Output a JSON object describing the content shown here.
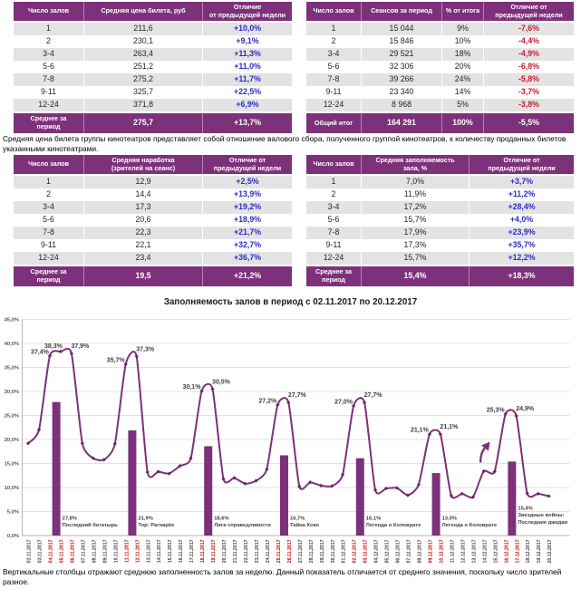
{
  "colors": {
    "purple": "#7D317A",
    "row_gray": "#E4E3E3",
    "positive_blue": "#2D2DBE",
    "negative_red": "#C31E32",
    "gridline": "#D9D9D9",
    "axis_line": "#A6A6A6",
    "data_label": "#3F3F3F",
    "date_label": "#404040",
    "date_label_weekend": "#C00000",
    "ytick_label": "#595959"
  },
  "tables": [
    {
      "name": "avg-ticket-price",
      "headers": [
        "Число залов",
        "Средняя цена билета, руб",
        "Отличие\nот предыдущей недели"
      ],
      "rows": [
        [
          "1",
          "211,6",
          "+10,0%"
        ],
        [
          "2",
          "230,1",
          "+9,1%"
        ],
        [
          "3-4",
          "263,4",
          "+11,3%"
        ],
        [
          "5-6",
          "251,2",
          "+11,0%"
        ],
        [
          "7-8",
          "275,2",
          "+11,7%"
        ],
        [
          "9-11",
          "325,7",
          "+22,5%"
        ],
        [
          "12-24",
          "371,8",
          "+6,9%"
        ]
      ],
      "footer": [
        "Среднее за\nпериод",
        "275,7",
        "+13,7%"
      ]
    },
    {
      "name": "sessions-per-period",
      "headers": [
        "Число залов",
        "Сеансов за период",
        "% от итога",
        "Отличие от\nпредыдущей недели"
      ],
      "rows": [
        [
          "1",
          "15 044",
          "9%",
          "-7,6%"
        ],
        [
          "2",
          "15 846",
          "10%",
          "-4,4%"
        ],
        [
          "3-4",
          "29 521",
          "18%",
          "-4,9%"
        ],
        [
          "5-6",
          "32 306",
          "20%",
          "-6,8%"
        ],
        [
          "7-8",
          "39 266",
          "24%",
          "-5,8%"
        ],
        [
          "9-11",
          "23 340",
          "14%",
          "-3,7%"
        ],
        [
          "12-24",
          "8 968",
          "5%",
          "-3,8%"
        ]
      ],
      "footer": [
        "Общий итог",
        "164 291",
        "100%",
        "-5,5%"
      ]
    },
    {
      "name": "avg-attendance-per-session",
      "headers": [
        "Число залов",
        "Средняя наработка\n(зрителей на сеанс)",
        "Отличие от\nпредыдущей недели"
      ],
      "rows": [
        [
          "1",
          "12,9",
          "+2,5%"
        ],
        [
          "2",
          "14,4",
          "+13,9%"
        ],
        [
          "3-4",
          "17,3",
          "+19,2%"
        ],
        [
          "5-6",
          "20,6",
          "+18,9%"
        ],
        [
          "7-8",
          "22,3",
          "+21,7%"
        ],
        [
          "9-11",
          "22,1",
          "+32,7%"
        ],
        [
          "12-24",
          "23,4",
          "+36,7%"
        ]
      ],
      "footer": [
        "Среднее за\nпериод",
        "19,5",
        "+21,2%"
      ]
    },
    {
      "name": "avg-hall-occupancy",
      "headers": [
        "Число залов",
        "Средняя заполняемость\nзала, %",
        "Отличие от\nпредыдущей недели"
      ],
      "rows": [
        [
          "1",
          "7,0%",
          "+3,7%"
        ],
        [
          "2",
          "11,9%",
          "+11,2%"
        ],
        [
          "3-4",
          "17,2%",
          "+28,4%"
        ],
        [
          "5-6",
          "15,7%",
          "+4,0%"
        ],
        [
          "7-8",
          "17,9%",
          "+23,9%"
        ],
        [
          "9-11",
          "17,3%",
          "+35,7%"
        ],
        [
          "12-24",
          "15,7%",
          "+12,2%"
        ]
      ],
      "footer": [
        "Среднее за\nпериод",
        "15,4%",
        "+18,3%"
      ]
    }
  ],
  "notes": {
    "ticket_price_note": "Средняя цена билета группы кинотеатров представляет собой отношение валового сбора, полученного группой кинотеатров, к количеству проданных билетов указанными кинотеатрами.",
    "bars_note": "Вертикальные столбцы отражают среднюю заполненность залов за неделю. Данный показатель отличается от среднего значения, поскольку число зрителей разное."
  },
  "chart_data": {
    "type": "line",
    "title": "Заполняемость залов в период с 02.11.2017 по 20.12.2017",
    "ylabel": "",
    "xlabel": "",
    "ylim": [
      0,
      45
    ],
    "ygrid_step": 5,
    "grid": true,
    "legend": false,
    "dates": [
      "02.11.2017",
      "03.11.2017",
      "04.11.2017",
      "05.11.2017",
      "06.11.2017",
      "07.11.2017",
      "08.11.2017",
      "09.11.2017",
      "10.11.2017",
      "11.11.2017",
      "12.11.2017",
      "13.11.2017",
      "14.11.2017",
      "15.11.2017",
      "16.11.2017",
      "17.11.2017",
      "18.11.2017",
      "19.11.2017",
      "20.11.2017",
      "21.11.2017",
      "22.11.2017",
      "23.11.2017",
      "24.11.2017",
      "25.11.2017",
      "26.11.2017",
      "27.11.2017",
      "28.11.2017",
      "29.11.2017",
      "30.11.2017",
      "01.12.2017",
      "02.12.2017",
      "03.12.2017",
      "04.12.2017",
      "05.12.2017",
      "06.12.2017",
      "07.12.2017",
      "08.12.2017",
      "09.12.2017",
      "10.12.2017",
      "11.12.2017",
      "12.12.2017",
      "13.12.2017",
      "14.12.2017",
      "15.12.2017",
      "16.12.2017",
      "17.12.2017",
      "18.12.2017",
      "19.12.2017",
      "20.12.2017"
    ],
    "weekend_red_dates": [
      "04.11.2017",
      "05.11.2017",
      "06.11.2017",
      "11.11.2017",
      "12.11.2017",
      "18.11.2017",
      "19.11.2017",
      "25.11.2017",
      "26.11.2017",
      "02.12.2017",
      "03.12.2017",
      "09.12.2017",
      "10.12.2017",
      "16.12.2017",
      "17.12.2017"
    ],
    "series": [
      {
        "name": "daily-occupancy-line",
        "type": "line",
        "smooth": true,
        "values": [
          19.2,
          22.0,
          37.4,
          38.3,
          37.9,
          19.2,
          16.1,
          15.8,
          19.1,
          35.7,
          37.3,
          13.2,
          13.3,
          12.9,
          14.5,
          16.1,
          30.1,
          30.5,
          11.8,
          12.0,
          10.8,
          11.4,
          13.8,
          27.2,
          27.7,
          10.2,
          11.1,
          10.4,
          10.3,
          12.7,
          27.0,
          27.7,
          9.5,
          9.8,
          9.9,
          8.4,
          10.6,
          21.1,
          21.1,
          8.3,
          8.7,
          8.0,
          13.4,
          13.3,
          25.3,
          24.9,
          8.8,
          8.7,
          8.2
        ],
        "point_labels": {
          "04.11.2017": "37,4%",
          "05.11.2017": "38,3%",
          "06.11.2017": "37,9%",
          "11.11.2017": "35,7%",
          "12.11.2017": "37,3%",
          "18.11.2017": "30,1%",
          "19.11.2017": "30,5%",
          "25.11.2017": "27,2%",
          "26.11.2017": "27,7%",
          "02.12.2017": "27,0%",
          "03.12.2017": "27,7%",
          "09.12.2017": "21,1%",
          "10.12.2017": "21,1%",
          "16.12.2017": "25,3%",
          "17.12.2017": "24,9%"
        }
      },
      {
        "name": "weekly-average-bars",
        "type": "bar",
        "bars": [
          {
            "value": 27.8,
            "label": "27,8%",
            "film_lines": [
              "Последний богатырь"
            ],
            "start_date": "04.11.2017"
          },
          {
            "value": 21.9,
            "label": "21,9%",
            "film_lines": [
              "Тор: Рагнарёк"
            ],
            "start_date": "11.11.2017"
          },
          {
            "value": 18.6,
            "label": "18,6%",
            "film_lines": [
              "Лига справедливости"
            ],
            "start_date": "18.11.2017"
          },
          {
            "value": 16.7,
            "label": "16,7%",
            "film_lines": [
              "Тайна Коко"
            ],
            "start_date": "25.11.2017"
          },
          {
            "value": 16.1,
            "label": "16,1%",
            "film_lines": [
              "Легенда о Коловрате"
            ],
            "start_date": "02.12.2017"
          },
          {
            "value": 13.0,
            "label": "13,0%",
            "film_lines": [
              "Легенда о Коловрате"
            ],
            "start_date": "09.12.2017"
          },
          {
            "value": 15.4,
            "label": "15,4%",
            "film_lines": [
              "Звездные войны:",
              "Последние джедаи"
            ],
            "start_date": "16.12.2017"
          }
        ]
      }
    ],
    "annotations": [
      {
        "type": "arrow",
        "near_date": "15.12.2017",
        "pointing": "up-right"
      }
    ]
  }
}
